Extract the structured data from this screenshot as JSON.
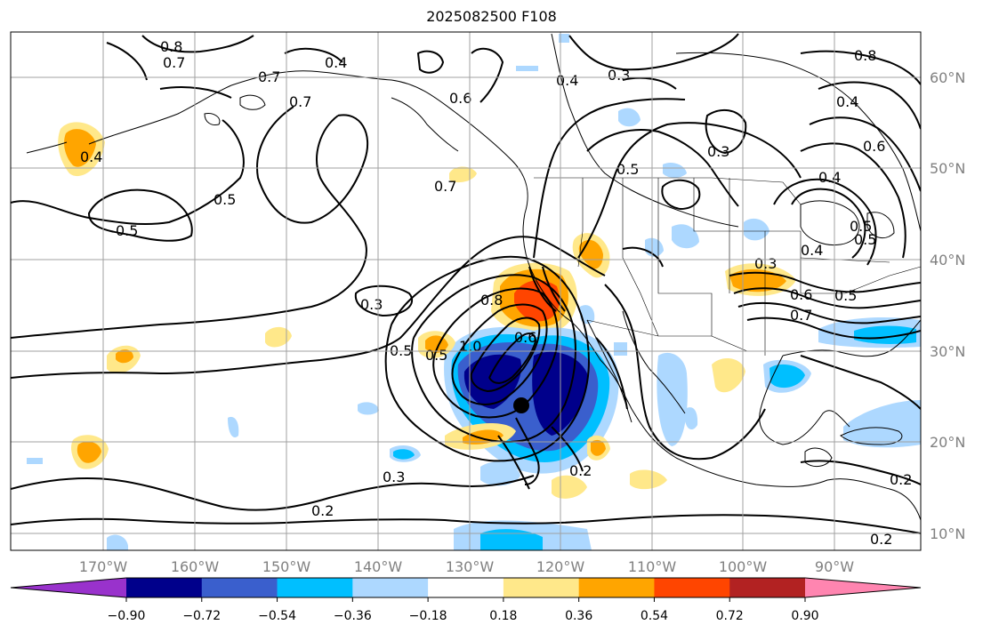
{
  "title": "2025082500 F108",
  "lat_labels": [
    "60°N",
    "50°N",
    "40°N",
    "30°N",
    "20°N",
    "10°N"
  ],
  "lon_labels": [
    "170°W",
    "160°W",
    "150°W",
    "140°W",
    "130°W",
    "120°W",
    "110°W",
    "100°W",
    "90°W"
  ],
  "colorbar": {
    "ticks": [
      "−0.90",
      "−0.72",
      "−0.54",
      "−0.36",
      "−0.18",
      "0.18",
      "0.36",
      "0.54",
      "0.72",
      "0.90"
    ],
    "colors": [
      "#9932cc",
      "#00008b",
      "#3a5fcd",
      "#00bfff",
      "#add8ff",
      "#ffffff",
      "#ffe88a",
      "#ffa500",
      "#ff4500",
      "#b22222",
      "#ff85b0"
    ]
  },
  "contour_labels": [
    "0.8",
    "0.7",
    "0.4",
    "0.7",
    "0.7",
    "0.6",
    "0.4",
    "0.3",
    "0.8",
    "0.4",
    "0.5",
    "0.3",
    "0.4",
    "0.5",
    "0.7",
    "0.5",
    "0.5",
    "0.3",
    "0.8",
    "0.3",
    "0.6",
    "0.5",
    "0.7",
    "0.5",
    "1.0",
    "0.5",
    "0.6",
    "0.2",
    "0.3",
    "0.2",
    "0.2",
    "0.2",
    "0.5",
    "0.6",
    "0.4",
    "0.4"
  ],
  "colors": {
    "contour": "#000000",
    "grid": "#a0a0a0",
    "coast": "#000000",
    "storm_dot": "#000000"
  }
}
